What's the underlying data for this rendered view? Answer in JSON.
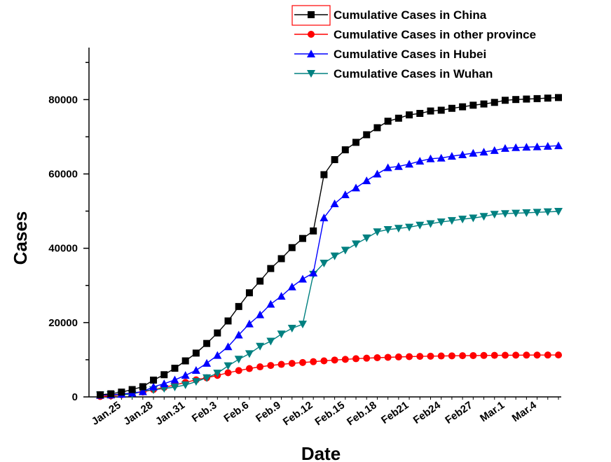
{
  "chart_data": {
    "type": "line",
    "xlabel": "Date",
    "ylabel": "Cases",
    "ylim": [
      0,
      94000
    ],
    "yticks": [
      0,
      20000,
      40000,
      60000,
      80000
    ],
    "x": [
      "Jan.23",
      "Jan.24",
      "Jan.25",
      "Jan.26",
      "Jan.27",
      "Jan.28",
      "Jan.29",
      "Jan.30",
      "Jan.31",
      "Feb.1",
      "Feb.2",
      "Feb.3",
      "Feb.4",
      "Feb.5",
      "Feb.6",
      "Feb.7",
      "Feb.8",
      "Feb.9",
      "Feb.10",
      "Feb.11",
      "Feb.12",
      "Feb.13",
      "Feb.14",
      "Feb.15",
      "Feb.16",
      "Feb.17",
      "Feb.18",
      "Feb.19",
      "Feb.20",
      "Feb.21",
      "Feb.22",
      "Feb.23",
      "Feb.24",
      "Feb.25",
      "Feb.26",
      "Feb.27",
      "Feb.28",
      "Feb.29",
      "Mar.1",
      "Mar.2",
      "Mar.3",
      "Mar.4",
      "Mar.5",
      "Mar.6"
    ],
    "xtick_labels": [
      {
        "index": 2,
        "label": "Jan.25"
      },
      {
        "index": 5,
        "label": "Jan.28"
      },
      {
        "index": 8,
        "label": "Jan.31"
      },
      {
        "index": 11,
        "label": "Feb.3"
      },
      {
        "index": 14,
        "label": "Feb.6"
      },
      {
        "index": 17,
        "label": "Feb.9"
      },
      {
        "index": 20,
        "label": "Feb.12"
      },
      {
        "index": 23,
        "label": "Feb.15"
      },
      {
        "index": 26,
        "label": "Feb.18"
      },
      {
        "index": 29,
        "label": "Feb21"
      },
      {
        "index": 32,
        "label": "Feb24"
      },
      {
        "index": 35,
        "label": "Feb27"
      },
      {
        "index": 38,
        "label": "Mar.1"
      },
      {
        "index": 41,
        "label": "Mar.4"
      }
    ],
    "series": [
      {
        "name": "Cumulative Cases in China",
        "color": "#000000",
        "marker": "square",
        "values": [
          571,
          830,
          1287,
          1975,
          2744,
          4515,
          5974,
          7711,
          9692,
          11791,
          14380,
          17205,
          20438,
          24324,
          28018,
          31161,
          34546,
          37198,
          40171,
          42638,
          44653,
          59804,
          63851,
          66492,
          68500,
          70548,
          72436,
          74185,
          75002,
          75891,
          76288,
          76936,
          77150,
          77658,
          78064,
          78497,
          78824,
          79251,
          79824,
          80026,
          80151,
          80270,
          80409,
          80552
        ]
      },
      {
        "name": "Cumulative Cases in other province",
        "color": "#ff0000",
        "marker": "circle",
        "values": [
          127,
          281,
          558,
          917,
          1303,
          1987,
          2558,
          3212,
          3901,
          4588,
          5150,
          5792,
          6496,
          7084,
          7620,
          8091,
          8461,
          8753,
          9020,
          9258,
          9480,
          9700,
          9920,
          10100,
          10280,
          10420,
          10550,
          10650,
          10750,
          10830,
          10900,
          10960,
          11010,
          11050,
          11090,
          11120,
          11150,
          11180,
          11210,
          11230,
          11250,
          11260,
          11270,
          11280
        ]
      },
      {
        "name": "Cumulative Cases in Hubei",
        "color": "#0000ff",
        "marker": "triangle-up",
        "values": [
          444,
          549,
          729,
          1052,
          1423,
          2714,
          3554,
          4586,
          5806,
          7153,
          9074,
          11177,
          13522,
          16678,
          19665,
          22112,
          24953,
          27100,
          29631,
          31728,
          33366,
          48206,
          51986,
          54406,
          56249,
          58182,
          59989,
          61682,
          62031,
          62662,
          63454,
          64084,
          64287,
          64786,
          65187,
          65596,
          65914,
          66337,
          66907,
          67103,
          67217,
          67332,
          67466,
          67592
        ]
      },
      {
        "name": "Cumulative Cases in Wuhan",
        "color": "#008080",
        "marker": "triangle-down",
        "values": [
          495,
          572,
          618,
          698,
          1590,
          1905,
          2261,
          2639,
          3215,
          4109,
          5142,
          6384,
          8351,
          10117,
          11618,
          13603,
          14982,
          16902,
          18454,
          19558,
          32994,
          35991,
          37914,
          39462,
          41152,
          42752,
          44412,
          45027,
          45346,
          45660,
          46201,
          46607,
          47071,
          47441,
          47824,
          48137,
          48557,
          49122,
          49315,
          49426,
          49540,
          49671,
          49797,
          49912
        ]
      }
    ]
  }
}
